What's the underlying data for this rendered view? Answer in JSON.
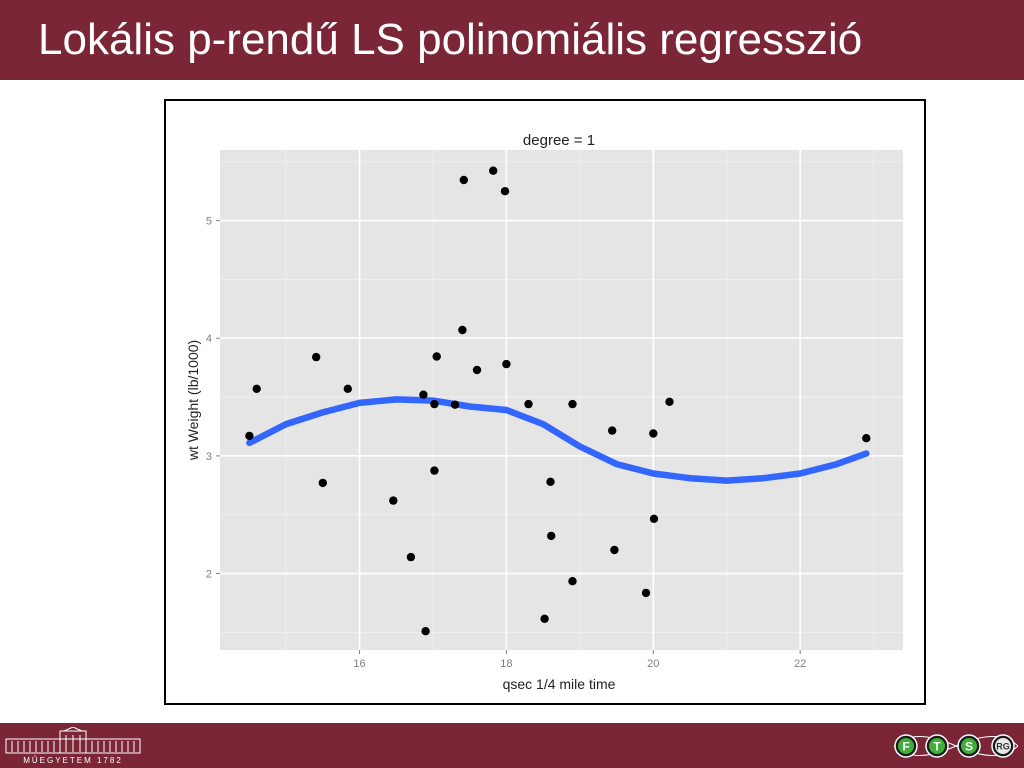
{
  "slide": {
    "title": "Lokális p-rendű LS polinomiális regresszió",
    "footer_logo_text": "MŰEGYETEM 1782",
    "footer_icons": [
      "F",
      "T",
      "S",
      "RG"
    ]
  },
  "colors": {
    "brand": "#7a2636",
    "panel": "#e5e5e5",
    "grid": "#ffffff",
    "curve": "#3366ff",
    "point": "#000000"
  },
  "chart_data": {
    "type": "scatter",
    "title": "degree = 1",
    "xlabel": "qsec  1/4 mile time",
    "ylabel": "wt  Weight (lb/1000)",
    "xlim": [
      14.1,
      23.4
    ],
    "ylim": [
      1.35,
      5.6
    ],
    "xticks": [
      16,
      18,
      20,
      22
    ],
    "yticks": [
      2,
      3,
      4,
      5
    ],
    "grid": true,
    "points": [
      [
        14.5,
        3.17
      ],
      [
        14.6,
        3.57
      ],
      [
        15.41,
        3.84
      ],
      [
        15.5,
        2.77
      ],
      [
        15.84,
        3.57
      ],
      [
        16.46,
        2.62
      ],
      [
        16.7,
        2.14
      ],
      [
        16.87,
        3.52
      ],
      [
        16.9,
        1.51
      ],
      [
        17.02,
        3.44
      ],
      [
        17.02,
        2.875
      ],
      [
        17.05,
        3.845
      ],
      [
        17.3,
        3.435
      ],
      [
        17.4,
        4.07
      ],
      [
        17.42,
        5.345
      ],
      [
        17.6,
        3.73
      ],
      [
        17.82,
        5.424
      ],
      [
        17.98,
        5.25
      ],
      [
        18.0,
        3.78
      ],
      [
        18.3,
        3.44
      ],
      [
        18.52,
        1.615
      ],
      [
        18.6,
        2.78
      ],
      [
        18.61,
        2.32
      ],
      [
        18.9,
        3.44
      ],
      [
        18.9,
        1.935
      ],
      [
        19.44,
        3.215
      ],
      [
        19.47,
        2.2
      ],
      [
        19.9,
        1.835
      ],
      [
        20.0,
        3.19
      ],
      [
        20.01,
        2.465
      ],
      [
        20.22,
        3.46
      ],
      [
        22.9,
        3.15
      ]
    ],
    "series": [
      {
        "type": "loess",
        "x": [
          14.5,
          15.0,
          15.5,
          16.0,
          16.5,
          17.0,
          17.5,
          18.0,
          18.5,
          19.0,
          19.5,
          20.0,
          20.5,
          21.0,
          21.5,
          22.0,
          22.5,
          22.9
        ],
        "y": [
          3.11,
          3.27,
          3.37,
          3.45,
          3.48,
          3.47,
          3.42,
          3.39,
          3.27,
          3.08,
          2.93,
          2.85,
          2.81,
          2.79,
          2.81,
          2.85,
          2.93,
          3.02
        ]
      }
    ]
  }
}
